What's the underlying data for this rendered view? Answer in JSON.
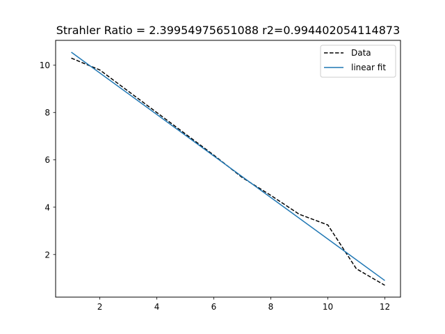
{
  "chart_data": {
    "type": "line",
    "title": "Strahler Ratio = 2.39954975651088 r2=0.994402054114873",
    "xlabel": "",
    "ylabel": "",
    "xlim": [
      0.45,
      12.55
    ],
    "ylim": [
      0.2,
      11.05
    ],
    "xticks": [
      2,
      4,
      6,
      8,
      10,
      12
    ],
    "yticks": [
      2,
      4,
      6,
      8,
      10
    ],
    "grid": false,
    "legend": {
      "placement": "top-right"
    },
    "series": [
      {
        "name": "Data",
        "style": "dashed",
        "color": "#000000",
        "x": [
          1,
          2,
          3,
          4,
          5,
          6,
          7,
          8,
          9,
          10,
          11,
          12
        ],
        "y": [
          10.3,
          9.8,
          8.9,
          8.0,
          7.1,
          6.2,
          5.25,
          4.5,
          3.7,
          3.25,
          1.4,
          0.7
        ]
      },
      {
        "name": "linear fit",
        "style": "solid",
        "color": "#1f77b4",
        "x": [
          1,
          12
        ],
        "y": [
          10.55,
          0.9
        ]
      }
    ]
  }
}
